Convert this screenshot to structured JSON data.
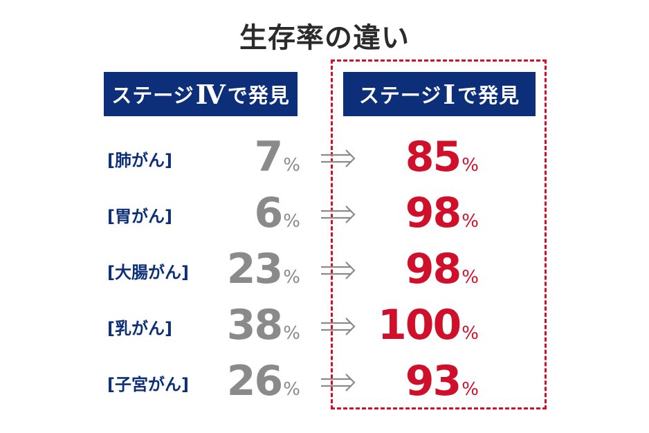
{
  "title": "生存率の違い",
  "headers": {
    "stage4": {
      "prefix": "ステージ",
      "roman": "Ⅳ",
      "suffix": "で発見"
    },
    "stage1": {
      "prefix": "ステージ",
      "roman": "Ⅰ",
      "suffix": "で発見"
    }
  },
  "percent_sign": "%",
  "colors": {
    "navy": "#0d2f7a",
    "red": "#d0102a",
    "gray": "#8a8a8a"
  },
  "chart_data": {
    "type": "table",
    "title": "生存率の違い",
    "columns": [
      "ステージⅣで発見",
      "ステージⅠで発見"
    ],
    "rows": [
      {
        "label": "[肺がん]",
        "stage4": 7,
        "stage1": 85
      },
      {
        "label": "[胃がん]",
        "stage4": 6,
        "stage1": 98
      },
      {
        "label": "[大腸がん]",
        "stage4": 23,
        "stage1": 98
      },
      {
        "label": "[乳がん]",
        "stage4": 38,
        "stage1": 100
      },
      {
        "label": "[子宮がん]",
        "stage4": 26,
        "stage1": 93
      }
    ],
    "unit": "%"
  }
}
